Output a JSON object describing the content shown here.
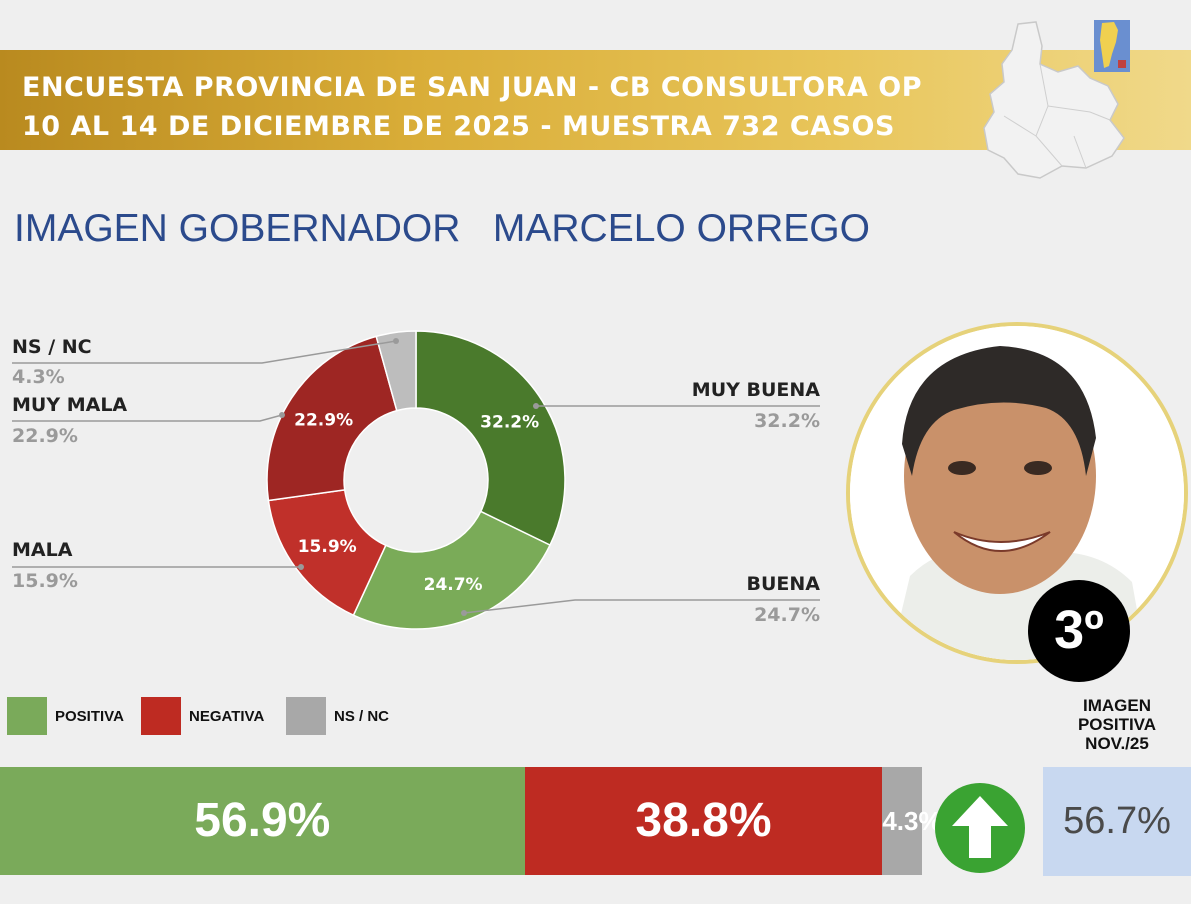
{
  "header": {
    "line1": "ENCUESTA PROVINCIA DE SAN JUAN - CB CONSULTORA OP",
    "line2": "10 AL 14 DE DICIEMBRE DE 2025 - MUESTRA 732 CASOS"
  },
  "title": "IMAGEN GOBERNADOR   MARCELO ORREGO",
  "rank": "3º",
  "chart_data": [
    {
      "type": "pie",
      "variant": "donut",
      "categories": [
        "MUY BUENA",
        "BUENA",
        "MALA",
        "MUY MALA",
        "NS / NC"
      ],
      "values": [
        32.2,
        24.7,
        15.9,
        22.9,
        4.3
      ],
      "slice_labels": [
        "32.2%",
        "24.7%",
        "15.9%",
        "22.9%",
        ""
      ],
      "callout_values": [
        "32.2%",
        "24.7%",
        "15.9%",
        "22.9%",
        "4.3%"
      ],
      "colors": [
        "#4a7a2c",
        "#7aab58",
        "#c0302a",
        "#9e2623",
        "#bdbdbd"
      ]
    },
    {
      "type": "bar",
      "variant": "stacked-100",
      "categories": [
        "POSITIVA",
        "NEGATIVA",
        "NS / NC"
      ],
      "values": [
        56.9,
        38.8,
        4.3
      ],
      "labels": [
        "56.9%",
        "38.8%",
        "4.3%"
      ],
      "colors": [
        "#7aaa5a",
        "#be2b22",
        "#a8a8a8"
      ]
    }
  ],
  "legend": [
    {
      "label": "POSITIVA",
      "color": "#7aaa5a"
    },
    {
      "label": "NEGATIVA",
      "color": "#be2b22"
    },
    {
      "label": "NS / NC",
      "color": "#a8a8a8"
    }
  ],
  "previous": {
    "label_line1": "IMAGEN",
    "label_line2": "POSITIVA",
    "label_line3": "NOV./25",
    "value": "56.7%",
    "trend_icon": "arrow-up-icon",
    "trend_color": "#3aa332"
  }
}
